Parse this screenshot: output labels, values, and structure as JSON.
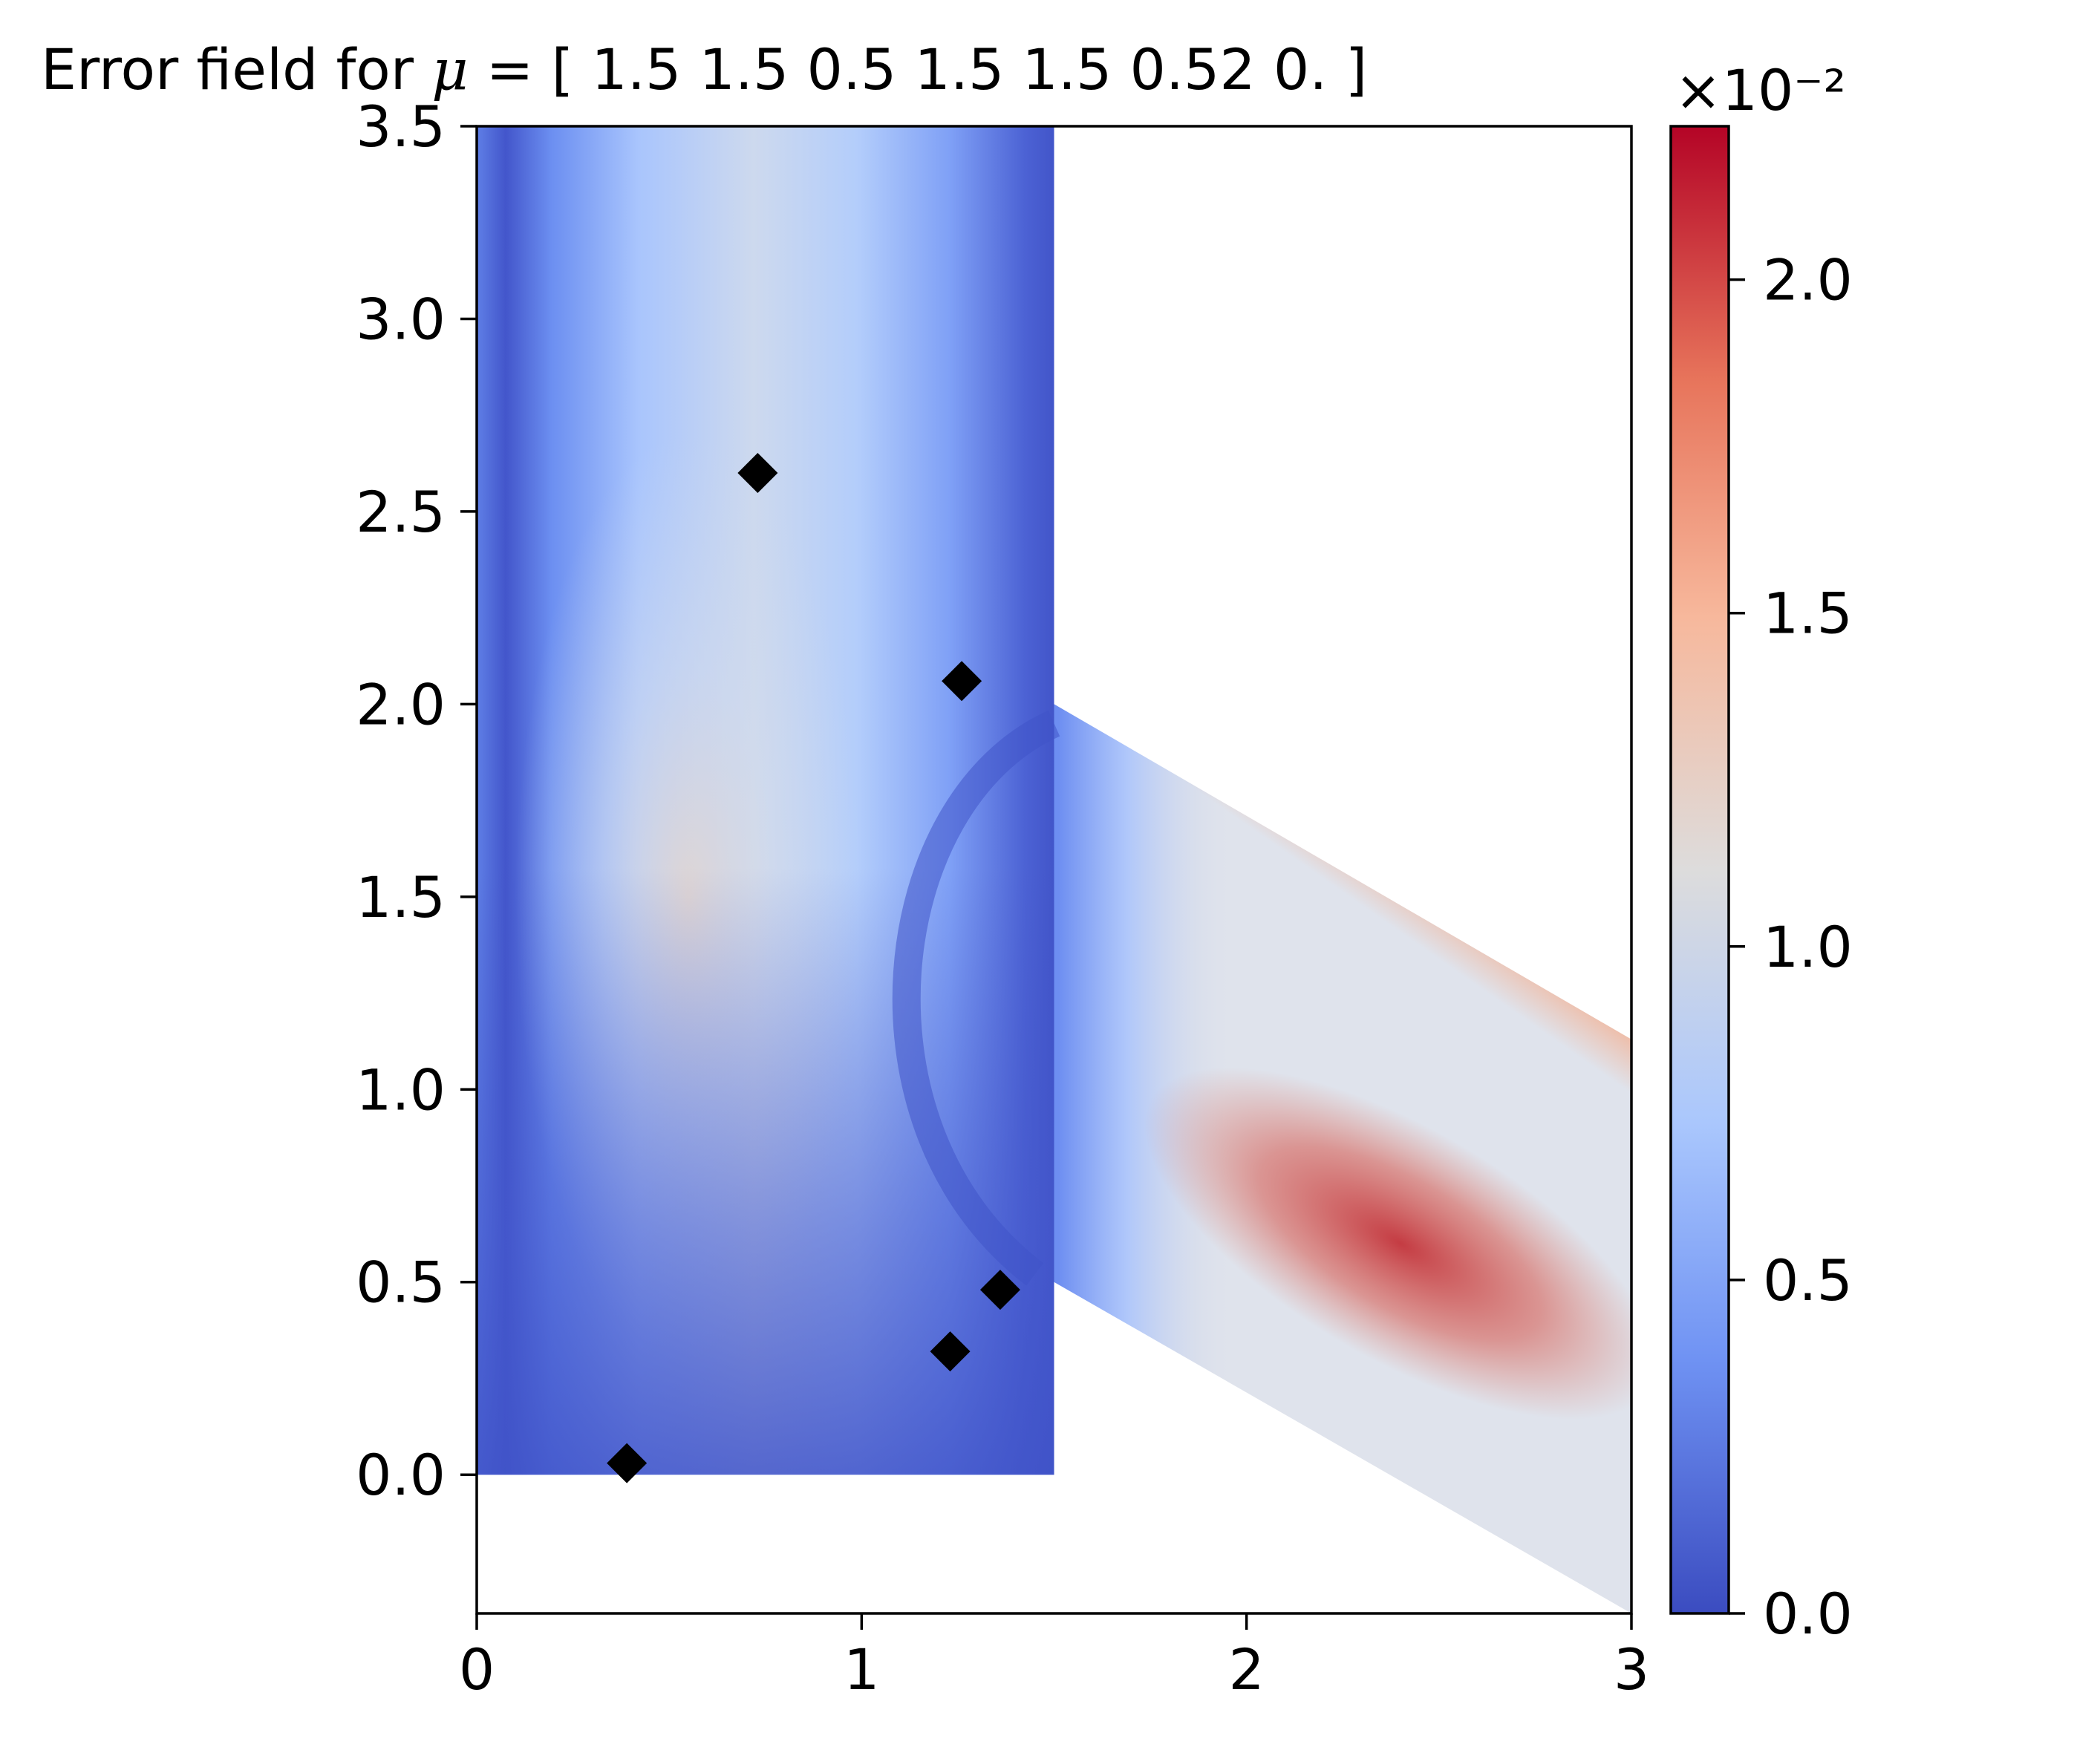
{
  "chart_data": {
    "type": "heatmap",
    "title": {
      "prefix": "Error field for ",
      "symbol": "μ",
      "suffix": " = [ 1.5   1.5   0.5   1.5   1.5   0.52   0.  ]"
    },
    "xlabel": "",
    "ylabel": "",
    "xlim": [
      0,
      3
    ],
    "ylim": [
      -0.36,
      3.5
    ],
    "x_ticks": [
      0,
      1,
      2,
      3
    ],
    "x_tick_labels": [
      "0",
      "1",
      "2",
      "3"
    ],
    "y_ticks": [
      0.0,
      0.5,
      1.0,
      1.5,
      2.0,
      2.5,
      3.0,
      3.5
    ],
    "y_tick_labels": [
      "0.0",
      "0.5",
      "1.0",
      "1.5",
      "2.0",
      "2.5",
      "3.0",
      "3.5"
    ],
    "grid": false,
    "colormap": "coolwarm",
    "colorbar": {
      "range": [
        0.0,
        2.23
      ],
      "ticks": [
        0.0,
        0.5,
        1.0,
        1.5,
        2.0
      ],
      "tick_labels": [
        "0.0",
        "0.5",
        "1.0",
        "1.5",
        "2.0"
      ],
      "offset_text": "×10⁻²",
      "colors": [
        "#3b4cc0",
        "#6f92f3",
        "#aac7fd",
        "#dddcdc",
        "#f7b89c",
        "#e7745b",
        "#b40426"
      ]
    },
    "domain": {
      "vertical_channel": {
        "x": [
          0,
          1.5
        ],
        "y": [
          0,
          3.5
        ]
      },
      "branch_polygon": [
        [
          1.5,
          2.0
        ],
        [
          3.0,
          1.13
        ],
        [
          3.0,
          -0.36
        ],
        [
          1.5,
          0.5
        ]
      ]
    },
    "error_regions": [
      {
        "label": "main-branch-hotspot",
        "cx": 2.4,
        "cy": 0.6,
        "value": 2.15
      },
      {
        "label": "channel-center",
        "cx": 0.55,
        "cy": 1.5,
        "value": 1.1
      }
    ],
    "markers": {
      "shape": "diamond",
      "color": "#000000",
      "points": [
        {
          "x": 0.73,
          "y": 2.6
        },
        {
          "x": 1.26,
          "y": 2.06
        },
        {
          "x": 1.36,
          "y": 0.48
        },
        {
          "x": 1.23,
          "y": 0.32
        },
        {
          "x": 0.39,
          "y": 0.03
        }
      ]
    }
  }
}
